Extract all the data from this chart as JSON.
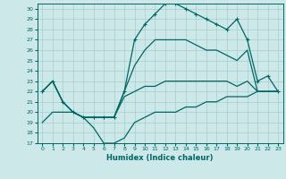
{
  "xlabel": "Humidex (Indice chaleur)",
  "bg_color": "#cce8e8",
  "grid_color": "#aacccc",
  "line_color": "#006666",
  "xlim": [
    -0.5,
    23.5
  ],
  "ylim": [
    17,
    30.5
  ],
  "yticks": [
    17,
    18,
    19,
    20,
    21,
    22,
    23,
    24,
    25,
    26,
    27,
    28,
    29,
    30
  ],
  "xticks": [
    0,
    1,
    2,
    3,
    4,
    5,
    6,
    7,
    8,
    9,
    10,
    11,
    12,
    13,
    14,
    15,
    16,
    17,
    18,
    19,
    20,
    21,
    22,
    23
  ],
  "line_high": [
    22,
    23,
    21,
    20,
    19.5,
    19.5,
    19.5,
    19.5,
    22,
    27,
    28.5,
    29.5,
    30.5,
    30.5,
    30,
    29.5,
    29,
    28.5,
    28,
    29,
    27,
    23,
    23.5,
    22
  ],
  "line_mid1": [
    22,
    23,
    21,
    20,
    19.5,
    19.5,
    19.5,
    19.5,
    22,
    24.5,
    26,
    27,
    27,
    27,
    27,
    26.5,
    26,
    26,
    25.5,
    25,
    26,
    22,
    22,
    22
  ],
  "line_mid2": [
    22,
    23,
    21,
    20,
    19.5,
    19.5,
    19.5,
    19.5,
    21.5,
    22,
    22.5,
    22.5,
    23,
    23,
    23,
    23,
    23,
    23,
    23,
    22.5,
    23,
    22,
    22,
    22
  ],
  "line_low": [
    19,
    20,
    20,
    20,
    19.5,
    18.5,
    17,
    17,
    17.5,
    19,
    19.5,
    20,
    20,
    20,
    20.5,
    20.5,
    21,
    21,
    21.5,
    21.5,
    21.5,
    22,
    22,
    22
  ]
}
